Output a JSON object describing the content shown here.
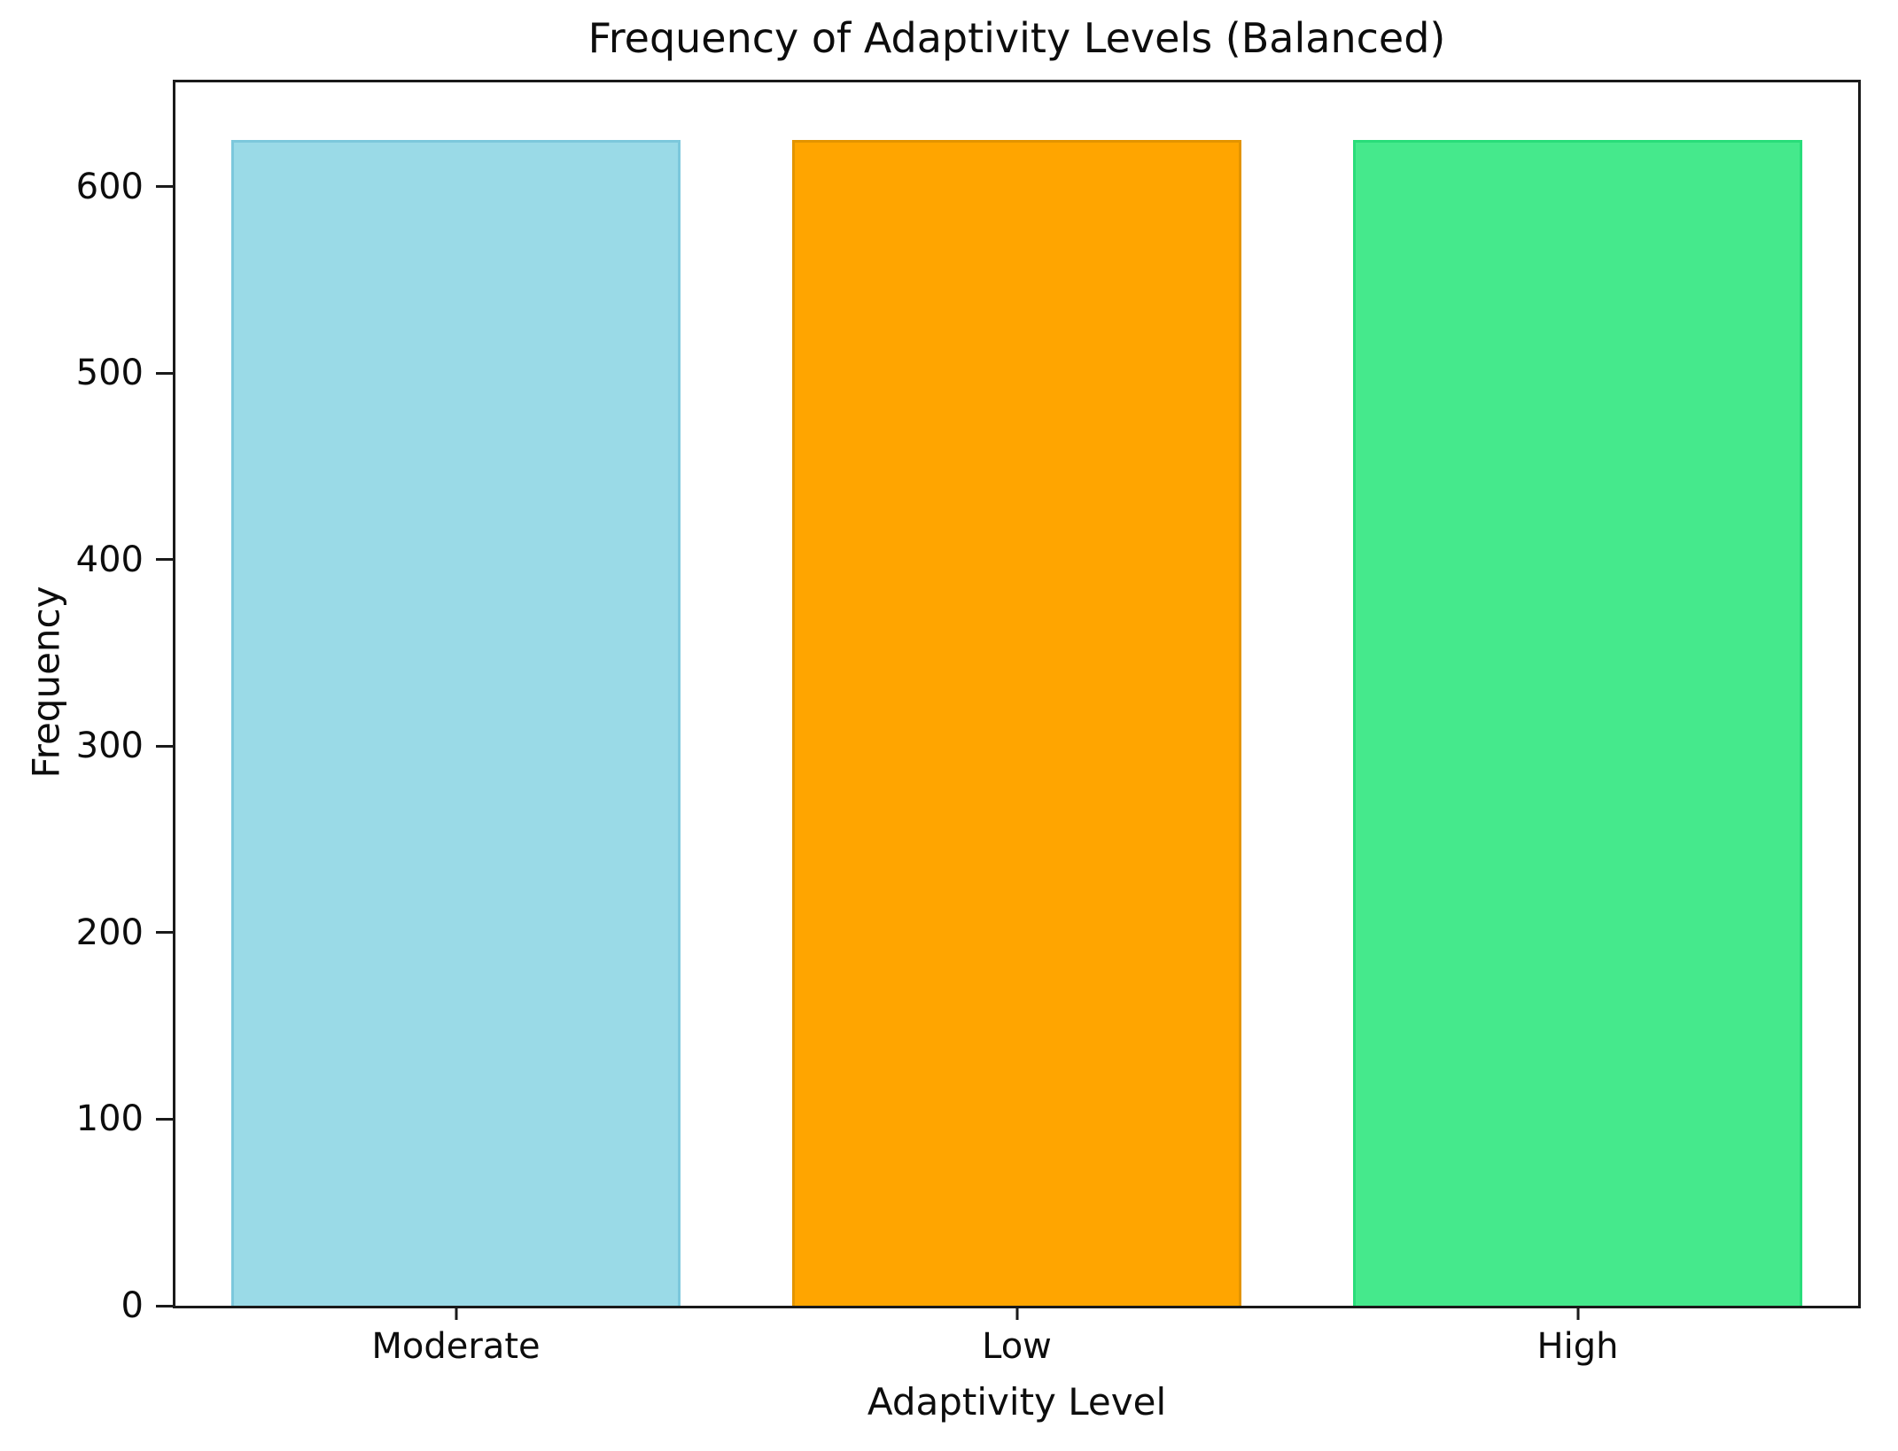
{
  "chart_data": {
    "type": "bar",
    "title": "Frequency of Adaptivity Levels (Balanced)",
    "xlabel": "Adaptivity Level",
    "ylabel": "Frequency",
    "categories": [
      "Moderate",
      "Low",
      "High"
    ],
    "values": [
      625,
      625,
      625
    ],
    "bar_colors": [
      "#9adae7",
      "#ffa500",
      "#45e98c"
    ],
    "bar_edge_colors": [
      "#7cc8dc",
      "#e39400",
      "#29dd7a"
    ],
    "ylim": [
      0,
      656
    ],
    "yticks": [
      0,
      100,
      200,
      300,
      400,
      500,
      600
    ],
    "grid": false,
    "legend_position": "none",
    "spine_color": "#1a1a1a"
  }
}
